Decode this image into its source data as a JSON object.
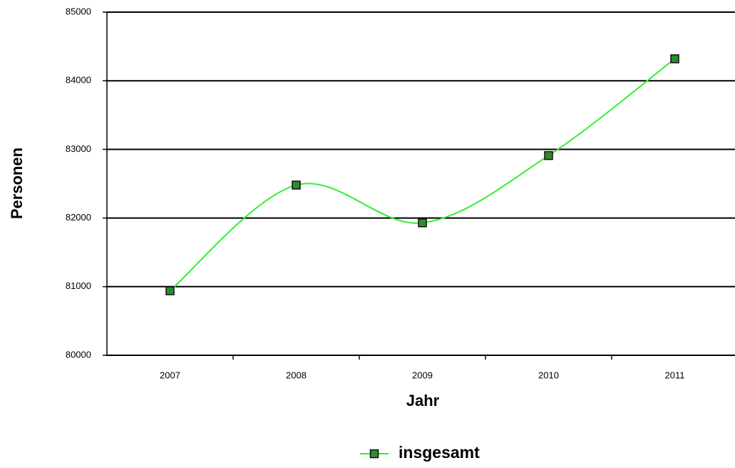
{
  "chart_data": {
    "type": "line",
    "x_label": "Jahr",
    "y_label": "Personen",
    "categories": [
      "2007",
      "2008",
      "2009",
      "2010",
      "2011"
    ],
    "series": [
      {
        "name": "insgesamt",
        "color": "#33ee33",
        "marker_color": "#2e8b2e",
        "values": [
          80940,
          82480,
          81930,
          82910,
          84320
        ]
      }
    ],
    "ylim": [
      80000,
      85000
    ],
    "yticks": [
      80000,
      81000,
      82000,
      83000,
      84000,
      85000
    ],
    "grid": true,
    "smooth": true,
    "legend": "bottom"
  }
}
